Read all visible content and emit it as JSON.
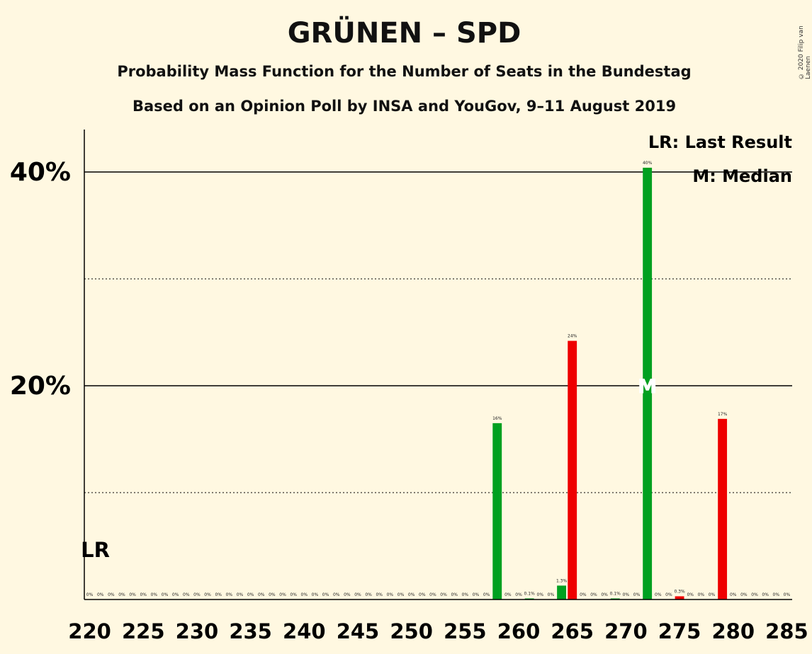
{
  "title": "GRÜNEN – SPD",
  "subtitle1": "Probability Mass Function for the Number of Seats in the Bundestag",
  "subtitle2": "Based on an Opinion Poll by INSA and YouGov, 9–11 August 2019",
  "credit": "© 2020 Filip van Laenen",
  "legend": {
    "lr": "LR: Last Result",
    "median": "M: Median"
  },
  "lr_marker": "LR",
  "median_marker": "M",
  "colors": {
    "primary": "#00a020",
    "secondary": "#ee0000",
    "background": "#fff8e1"
  },
  "chart_data": {
    "type": "bar",
    "x": [
      220,
      221,
      222,
      223,
      224,
      225,
      226,
      227,
      228,
      229,
      230,
      231,
      232,
      233,
      234,
      235,
      236,
      237,
      238,
      239,
      240,
      241,
      242,
      243,
      244,
      245,
      246,
      247,
      248,
      249,
      250,
      251,
      252,
      253,
      254,
      255,
      256,
      257,
      258,
      259,
      260,
      261,
      262,
      263,
      264,
      265,
      266,
      267,
      268,
      269,
      270,
      271,
      272,
      273,
      274,
      275,
      276,
      277,
      278,
      279,
      280,
      281,
      282,
      283,
      284,
      285
    ],
    "values": [
      0,
      0,
      0,
      0,
      0,
      0,
      0,
      0,
      0,
      0,
      0,
      0,
      0,
      0,
      0,
      0,
      0,
      0,
      0,
      0,
      0,
      0,
      0,
      0,
      0,
      0,
      0,
      0,
      0,
      0,
      0,
      0,
      0,
      0,
      0,
      0,
      0,
      0,
      16.5,
      0,
      0,
      0.1,
      0,
      0,
      1.3,
      24.2,
      0,
      0,
      0,
      0.1,
      0,
      0,
      40.4,
      0,
      0,
      0.3,
      0,
      0,
      0,
      16.9,
      0,
      0,
      0,
      0,
      0,
      0
    ],
    "labels": [
      "0%",
      "0%",
      "0%",
      "0%",
      "0%",
      "0%",
      "0%",
      "0%",
      "0%",
      "0%",
      "0%",
      "0%",
      "0%",
      "0%",
      "0%",
      "0%",
      "0%",
      "0%",
      "0%",
      "0%",
      "0%",
      "0%",
      "0%",
      "0%",
      "0%",
      "0%",
      "0%",
      "0%",
      "0%",
      "0%",
      "0%",
      "0%",
      "0%",
      "0%",
      "0%",
      "0%",
      "0%",
      "0%",
      "16%",
      "0%",
      "0%",
      "0.1%",
      "0%",
      "0%",
      "1.3%",
      "24%",
      "0%",
      "0%",
      "0%",
      "0.1%",
      "0%",
      "0%",
      "40%",
      "0%",
      "0%",
      "0.3%",
      "0%",
      "0%",
      "0%",
      "17%",
      "0%",
      "0%",
      "0%",
      "0%",
      "0%",
      "0%"
    ],
    "bar_colors": [
      "g",
      "g",
      "g",
      "g",
      "g",
      "g",
      "g",
      "g",
      "g",
      "g",
      "g",
      "g",
      "g",
      "g",
      "g",
      "g",
      "g",
      "g",
      "g",
      "g",
      "g",
      "g",
      "g",
      "g",
      "g",
      "g",
      "g",
      "g",
      "g",
      "g",
      "g",
      "g",
      "g",
      "g",
      "g",
      "g",
      "g",
      "g",
      "g",
      "g",
      "g",
      "g",
      "g",
      "g",
      "g",
      "r",
      "g",
      "g",
      "g",
      "g",
      "g",
      "g",
      "g",
      "g",
      "g",
      "r",
      "g",
      "g",
      "g",
      "r",
      "g",
      "g",
      "g",
      "g",
      "g",
      "g"
    ],
    "xticks": [
      220,
      225,
      230,
      235,
      240,
      245,
      250,
      255,
      260,
      265,
      270,
      275,
      280,
      285
    ],
    "yticks": [
      {
        "v": 20,
        "label": "20%"
      },
      {
        "v": 40,
        "label": "40%"
      }
    ],
    "ylim": [
      0,
      44
    ],
    "last_result": 220,
    "median": 272
  }
}
